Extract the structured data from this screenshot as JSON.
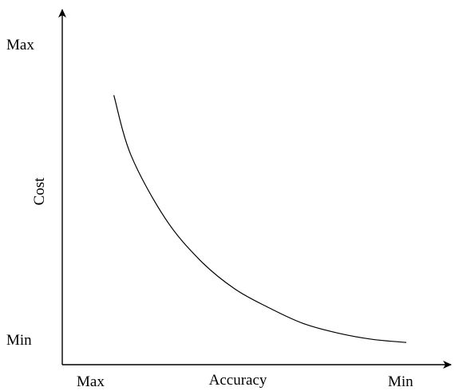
{
  "chart_data": {
    "type": "line",
    "title": "",
    "xlabel": "Accuracy",
    "ylabel": "Cost",
    "x_ticks": [
      "Max",
      "Min"
    ],
    "y_ticks": [
      "Max",
      "Min"
    ],
    "x_direction": "Max to Min (left to right)",
    "y_direction": "Min to Max (bottom to top)",
    "grid": false,
    "legend": "none",
    "series": [
      {
        "x": [
          0.15,
          0.2,
          0.3,
          0.4,
          0.5,
          0.6,
          0.7,
          0.8,
          0.9,
          1.0
        ],
        "y": [
          0.85,
          0.66,
          0.46,
          0.33,
          0.24,
          0.18,
          0.13,
          0.1,
          0.08,
          0.07
        ]
      }
    ],
    "xlim": [
      0,
      1.13
    ],
    "ylim": [
      0,
      1.12
    ]
  },
  "colors": {
    "axis": "#000000",
    "curve": "#000000",
    "background": "#ffffff"
  }
}
